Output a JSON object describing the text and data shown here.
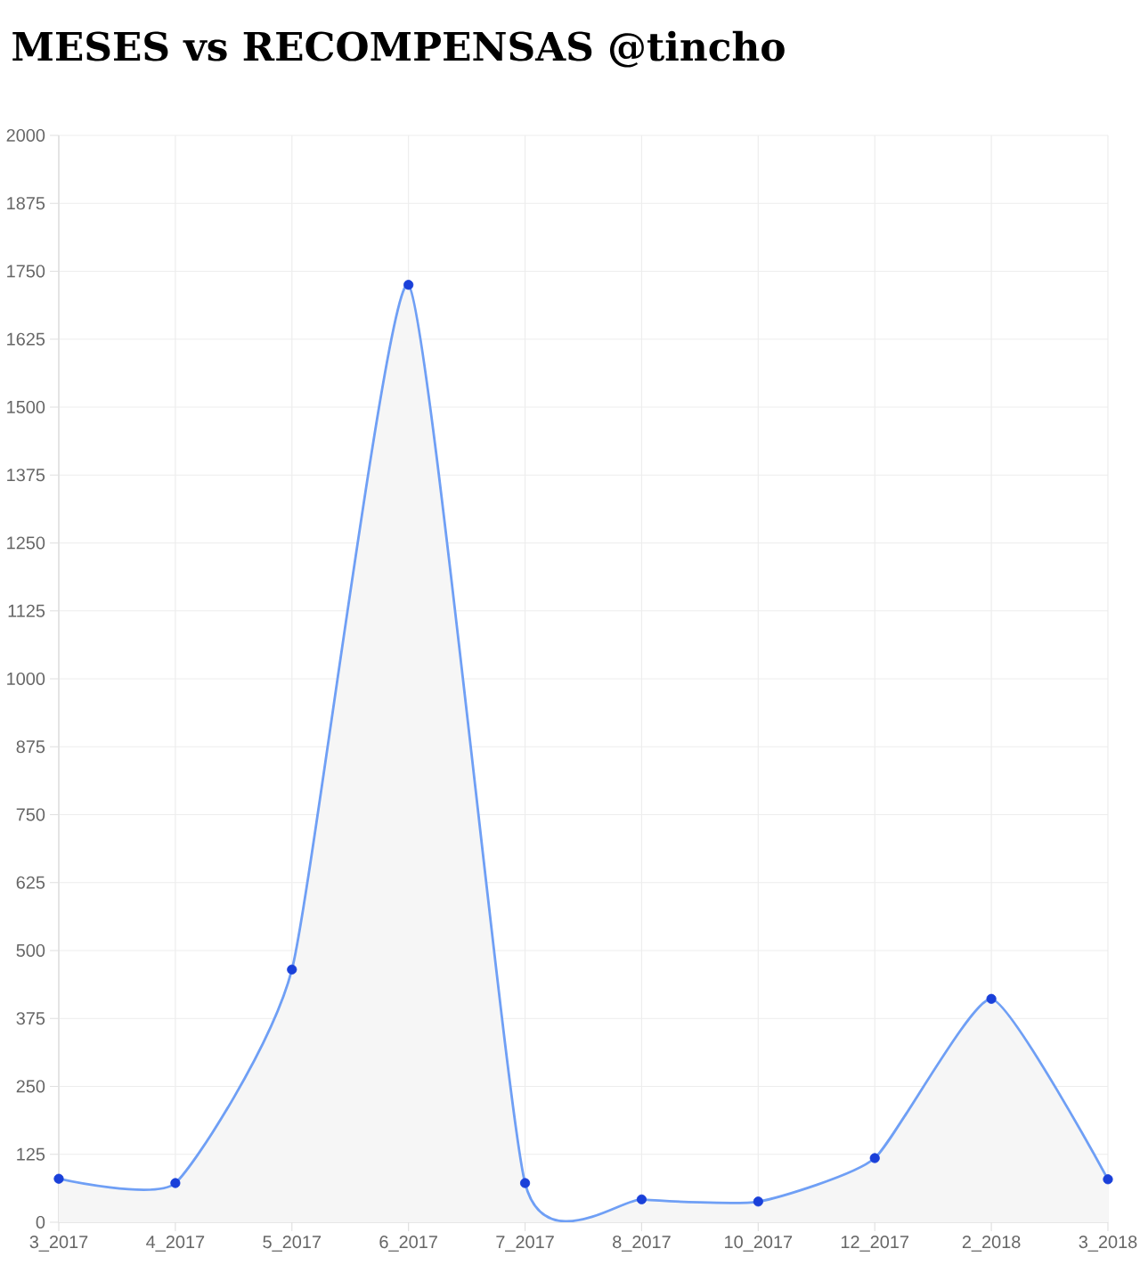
{
  "chart_data": {
    "type": "area",
    "title": "MESES vs RECOMPENSAS @tincho",
    "categories": [
      "3_2017",
      "4_2017",
      "5_2017",
      "6_2017",
      "7_2017",
      "8_2017",
      "10_2017",
      "12_2017",
      "2_2018",
      "3_2018"
    ],
    "series": [
      {
        "color": "#6f9ff5",
        "colors": [
          "#1a40d9",
          "#1a40d9",
          "#1a40d9",
          "#1a40d9",
          "#1a40d9",
          "#1a40d9",
          "#1a40d9",
          "#1a40d9",
          "#1a40d9",
          "#1a40d9"
        ],
        "values": [
          80,
          72,
          465,
          1725,
          72,
          42,
          38,
          118,
          411,
          79
        ]
      }
    ],
    "ylim": [
      0,
      2000
    ],
    "yticks": [
      0,
      125,
      250,
      375,
      500,
      625,
      750,
      875,
      1000,
      1125,
      1250,
      1375,
      1500,
      1625,
      1750,
      1875,
      2000
    ],
    "grid": true,
    "marker": "circle",
    "line_style": "solid"
  }
}
